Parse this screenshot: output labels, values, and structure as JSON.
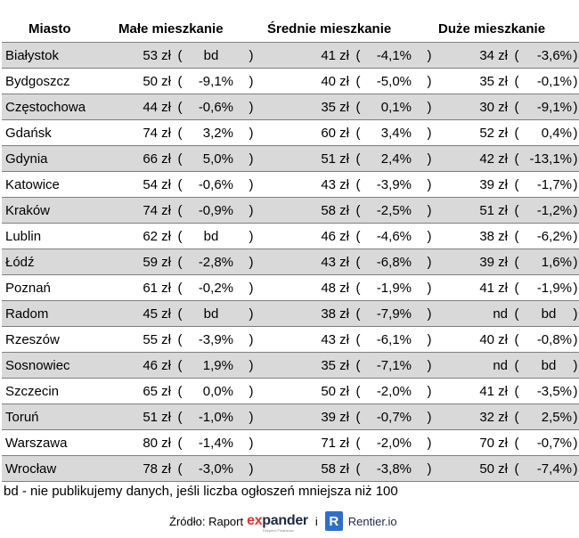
{
  "header": {
    "city": "Miasto",
    "small": "Małe mieszkanie",
    "medium": "Średnie mieszkanie",
    "large": "Duże mieszkanie"
  },
  "rows": [
    {
      "city": "Białystok",
      "small": {
        "price": "53 zł",
        "change": "bd"
      },
      "medium": {
        "price": "41 zł",
        "change": "-4,1%"
      },
      "large": {
        "price": "34 zł",
        "change": "-3,6%"
      }
    },
    {
      "city": "Bydgoszcz",
      "small": {
        "price": "50 zł",
        "change": "-9,1%"
      },
      "medium": {
        "price": "40 zł",
        "change": "-5,0%"
      },
      "large": {
        "price": "35 zł",
        "change": "-0,1%"
      }
    },
    {
      "city": "Częstochowa",
      "small": {
        "price": "44 zł",
        "change": "-0,6%"
      },
      "medium": {
        "price": "35 zł",
        "change": "0,1%"
      },
      "large": {
        "price": "30 zł",
        "change": "-9,1%"
      }
    },
    {
      "city": "Gdańsk",
      "small": {
        "price": "74 zł",
        "change": "3,2%"
      },
      "medium": {
        "price": "60 zł",
        "change": "3,4%"
      },
      "large": {
        "price": "52 zł",
        "change": "0,4%"
      }
    },
    {
      "city": "Gdynia",
      "small": {
        "price": "66 zł",
        "change": "5,0%"
      },
      "medium": {
        "price": "51 zł",
        "change": "2,4%"
      },
      "large": {
        "price": "42 zł",
        "change": "-13,1%"
      }
    },
    {
      "city": "Katowice",
      "small": {
        "price": "54 zł",
        "change": "-0,6%"
      },
      "medium": {
        "price": "43 zł",
        "change": "-3,9%"
      },
      "large": {
        "price": "39 zł",
        "change": "-1,7%"
      }
    },
    {
      "city": "Kraków",
      "small": {
        "price": "74 zł",
        "change": "-0,9%"
      },
      "medium": {
        "price": "58 zł",
        "change": "-2,5%"
      },
      "large": {
        "price": "51 zł",
        "change": "-1,2%"
      }
    },
    {
      "city": "Lublin",
      "small": {
        "price": "62 zł",
        "change": "bd"
      },
      "medium": {
        "price": "46 zł",
        "change": "-4,6%"
      },
      "large": {
        "price": "38 zł",
        "change": "-6,2%"
      }
    },
    {
      "city": "Łódź",
      "small": {
        "price": "59 zł",
        "change": "-2,8%"
      },
      "medium": {
        "price": "43 zł",
        "change": "-6,8%"
      },
      "large": {
        "price": "39 zł",
        "change": "1,6%"
      }
    },
    {
      "city": "Poznań",
      "small": {
        "price": "61 zł",
        "change": "-0,2%"
      },
      "medium": {
        "price": "48 zł",
        "change": "-1,9%"
      },
      "large": {
        "price": "41 zł",
        "change": "-1,9%"
      }
    },
    {
      "city": "Radom",
      "small": {
        "price": "45 zł",
        "change": "bd"
      },
      "medium": {
        "price": "38 zł",
        "change": "-7,9%"
      },
      "large": {
        "price": "nd",
        "change": "bd"
      }
    },
    {
      "city": "Rzeszów",
      "small": {
        "price": "55 zł",
        "change": "-3,9%"
      },
      "medium": {
        "price": "43 zł",
        "change": "-6,1%"
      },
      "large": {
        "price": "40 zł",
        "change": "-0,8%"
      }
    },
    {
      "city": "Sosnowiec",
      "small": {
        "price": "46 zł",
        "change": "1,9%"
      },
      "medium": {
        "price": "35 zł",
        "change": "-7,1%"
      },
      "large": {
        "price": "nd",
        "change": "bd"
      }
    },
    {
      "city": "Szczecin",
      "small": {
        "price": "65 zł",
        "change": "0,0%"
      },
      "medium": {
        "price": "50 zł",
        "change": "-2,0%"
      },
      "large": {
        "price": "41 zł",
        "change": "-3,5%"
      }
    },
    {
      "city": "Toruń",
      "small": {
        "price": "51 zł",
        "change": "-1,0%"
      },
      "medium": {
        "price": "39 zł",
        "change": "-0,7%"
      },
      "large": {
        "price": "32 zł",
        "change": "2,5%"
      }
    },
    {
      "city": "Warszawa",
      "small": {
        "price": "80 zł",
        "change": "-1,4%"
      },
      "medium": {
        "price": "71 zł",
        "change": "-2,0%"
      },
      "large": {
        "price": "70 zł",
        "change": "-0,7%"
      }
    },
    {
      "city": "Wrocław",
      "small": {
        "price": "78 zł",
        "change": "-3,0%"
      },
      "medium": {
        "price": "58 zł",
        "change": "-3,8%"
      },
      "large": {
        "price": "50 zł",
        "change": "-7,4%"
      }
    }
  ],
  "paren_open": "(",
  "paren_close": ")",
  "note": "bd - nie publikujemy danych, jeśli liczba ogłoszeń mniejsza niż 100",
  "source": {
    "label": "Źródło: Raport",
    "expander_ex": "ex",
    "expander_rest": "pander",
    "expander_tagline": "Eksperci Finansowi",
    "separator": "i",
    "rentier_letter": "R",
    "rentier": "Rentier.io"
  },
  "colors": {
    "row_shade": "#d9d9d9",
    "grid_line": "#7f7f7f",
    "expander_red": "#e4312b",
    "expander_navy": "#1f2a44",
    "rentier_blue": "#2f6fc9"
  }
}
